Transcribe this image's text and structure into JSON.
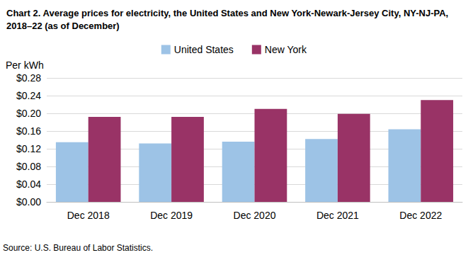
{
  "chart_data": {
    "type": "bar",
    "title": "Chart 2. Average prices for electricity, the United States and New York-Newark-Jersey City, NY-NJ-PA, 2018–22 (as of December)",
    "y_label": "Per kWh",
    "source": "Source: U.S. Bureau of Labor Statistics.",
    "categories": [
      "Dec 2018",
      "Dec 2019",
      "Dec 2020",
      "Dec 2021",
      "Dec 2022"
    ],
    "series": [
      {
        "name": "United States",
        "color": "#9dc3e6",
        "values": [
          0.135,
          0.132,
          0.136,
          0.142,
          0.164
        ]
      },
      {
        "name": "New York",
        "color": "#993366",
        "values": [
          0.192,
          0.192,
          0.21,
          0.199,
          0.23
        ]
      }
    ],
    "ylim": [
      0,
      0.28
    ],
    "yticks": [
      {
        "value": 0,
        "label": "$0.00"
      },
      {
        "value": 0.04,
        "label": "$0.04"
      },
      {
        "value": 0.08,
        "label": "$0.08"
      },
      {
        "value": 0.12,
        "label": "$0.12"
      },
      {
        "value": 0.16,
        "label": "$0.16"
      },
      {
        "value": 0.2,
        "label": "$0.20"
      },
      {
        "value": 0.24,
        "label": "$0.24"
      },
      {
        "value": 0.28,
        "label": "$0.28"
      }
    ],
    "grid": true,
    "legend": "top"
  }
}
